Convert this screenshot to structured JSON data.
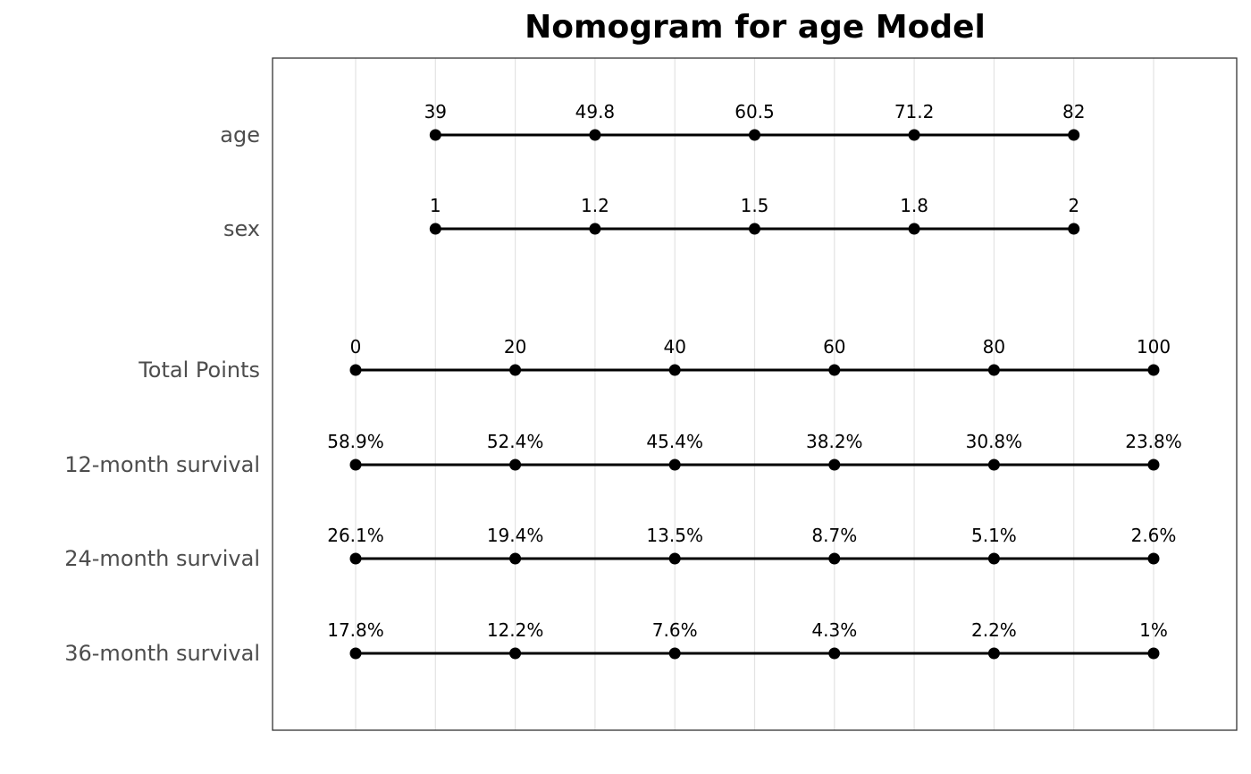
{
  "chart_data": {
    "type": "nomogram",
    "title": "Nomogram for age Model",
    "grid": true,
    "points_range": [
      0,
      100
    ],
    "rows": [
      {
        "label": "age",
        "ticks": [
          {
            "points": 10,
            "label": "39"
          },
          {
            "points": 30,
            "label": "49.8"
          },
          {
            "points": 50,
            "label": "60.5"
          },
          {
            "points": 70,
            "label": "71.2"
          },
          {
            "points": 90,
            "label": "82"
          }
        ]
      },
      {
        "label": "sex",
        "ticks": [
          {
            "points": 10,
            "label": "1"
          },
          {
            "points": 30,
            "label": "1.2"
          },
          {
            "points": 50,
            "label": "1.5"
          },
          {
            "points": 70,
            "label": "1.8"
          },
          {
            "points": 90,
            "label": "2"
          }
        ]
      },
      {
        "label": "Total Points",
        "ticks": [
          {
            "points": 0,
            "label": "0"
          },
          {
            "points": 20,
            "label": "20"
          },
          {
            "points": 40,
            "label": "40"
          },
          {
            "points": 60,
            "label": "60"
          },
          {
            "points": 80,
            "label": "80"
          },
          {
            "points": 100,
            "label": "100"
          }
        ]
      },
      {
        "label": "12-month survival",
        "ticks": [
          {
            "points": 0,
            "label": "58.9%"
          },
          {
            "points": 20,
            "label": "52.4%"
          },
          {
            "points": 40,
            "label": "45.4%"
          },
          {
            "points": 60,
            "label": "38.2%"
          },
          {
            "points": 80,
            "label": "30.8%"
          },
          {
            "points": 100,
            "label": "23.8%"
          }
        ]
      },
      {
        "label": "24-month survival",
        "ticks": [
          {
            "points": 0,
            "label": "26.1%"
          },
          {
            "points": 20,
            "label": "19.4%"
          },
          {
            "points": 40,
            "label": "13.5%"
          },
          {
            "points": 60,
            "label": "8.7%"
          },
          {
            "points": 80,
            "label": "5.1%"
          },
          {
            "points": 100,
            "label": "2.6%"
          }
        ]
      },
      {
        "label": "36-month survival",
        "ticks": [
          {
            "points": 0,
            "label": "17.8%"
          },
          {
            "points": 20,
            "label": "12.2%"
          },
          {
            "points": 40,
            "label": "7.6%"
          },
          {
            "points": 60,
            "label": "4.3%"
          },
          {
            "points": 80,
            "label": "2.2%"
          },
          {
            "points": 100,
            "label": "1%"
          }
        ]
      }
    ],
    "colors": {
      "line": "#000000",
      "label": "#4d4d4d",
      "grid": "#e3e3e3",
      "border": "#333333"
    }
  }
}
